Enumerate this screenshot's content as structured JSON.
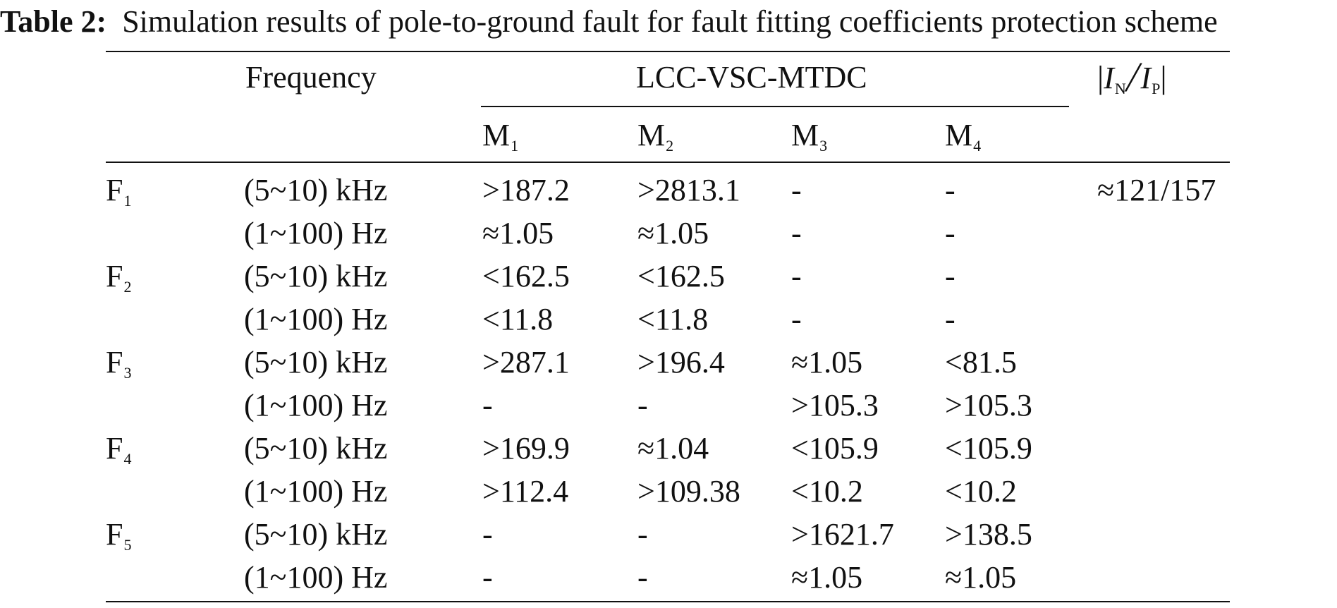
{
  "caption": {
    "label": "Table 2:",
    "title": "Simulation results of pole-to-ground fault for fault fitting coefficients protection scheme"
  },
  "header": {
    "frequency": "Frequency",
    "group": "LCC-VSC-MTDC",
    "ratio": {
      "bar_left": "|",
      "i1": "I",
      "i1_sub": "N",
      "slash": "/",
      "i2": "I",
      "i2_sub": "P",
      "bar_right": "|"
    },
    "measures": [
      {
        "base": "M",
        "sub": "1"
      },
      {
        "base": "M",
        "sub": "2"
      },
      {
        "base": "M",
        "sub": "3"
      },
      {
        "base": "M",
        "sub": "4"
      }
    ]
  },
  "faults": [
    {
      "base": "F",
      "sub": "1"
    },
    {
      "base": "F",
      "sub": "2"
    },
    {
      "base": "F",
      "sub": "3"
    },
    {
      "base": "F",
      "sub": "4"
    },
    {
      "base": "F",
      "sub": "5"
    }
  ],
  "rows": [
    {
      "freq": "(5~10) kHz",
      "m1": ">187.2",
      "m2": ">2813.1",
      "m3": "-",
      "m4": "-",
      "ratio": "≈121/157"
    },
    {
      "freq": "(1~100) Hz",
      "m1": "≈1.05",
      "m2": "≈1.05",
      "m3": "-",
      "m4": "-",
      "ratio": ""
    },
    {
      "freq": "(5~10) kHz",
      "m1": "<162.5",
      "m2": "<162.5",
      "m3": "-",
      "m4": "-",
      "ratio": ""
    },
    {
      "freq": "(1~100) Hz",
      "m1": "<11.8",
      "m2": "<11.8",
      "m3": "-",
      "m4": "-",
      "ratio": ""
    },
    {
      "freq": "(5~10) kHz",
      "m1": ">287.1",
      "m2": ">196.4",
      "m3": "≈1.05",
      "m4": "<81.5",
      "ratio": ""
    },
    {
      "freq": "(1~100) Hz",
      "m1": "-",
      "m2": "-",
      "m3": ">105.3",
      "m4": ">105.3",
      "ratio": ""
    },
    {
      "freq": "(5~10) kHz",
      "m1": ">169.9",
      "m2": "≈1.04",
      "m3": "<105.9",
      "m4": "<105.9",
      "ratio": ""
    },
    {
      "freq": "(1~100) Hz",
      "m1": ">112.4",
      "m2": ">109.38",
      "m3": "<10.2",
      "m4": "<10.2",
      "ratio": ""
    },
    {
      "freq": "(5~10) kHz",
      "m1": "-",
      "m2": "-",
      "m3": ">1621.7",
      "m4": ">138.5",
      "ratio": ""
    },
    {
      "freq": "(1~100) Hz",
      "m1": "-",
      "m2": "-",
      "m3": "≈1.05",
      "m4": "≈1.05",
      "ratio": ""
    }
  ]
}
